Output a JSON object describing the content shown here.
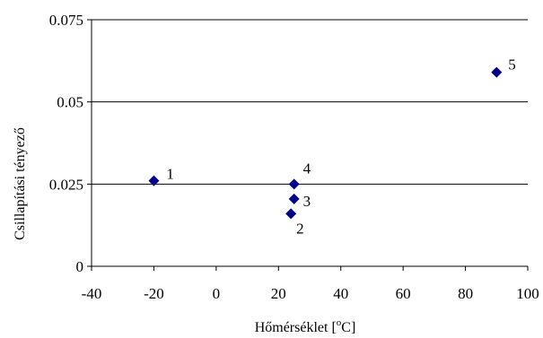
{
  "chart_data": {
    "type": "scatter",
    "xlabel": "Hőmérséklet [°C]",
    "xlabel_base": "Hőmérséklet [",
    "xlabel_sup": "o",
    "xlabel_tail": "C]",
    "ylabel": "Csillapítási tényező",
    "xlim": [
      -40,
      100
    ],
    "ylim": [
      0,
      0.075
    ],
    "x_ticks": [
      -40,
      -20,
      0,
      20,
      40,
      60,
      80,
      100
    ],
    "y_ticks": [
      0,
      0.025,
      0.05,
      0.075
    ],
    "x_tick_labels": [
      "-40",
      "-20",
      "0",
      "20",
      "40",
      "60",
      "80",
      "100"
    ],
    "y_tick_labels": [
      "0",
      "0.025",
      "0.05",
      "0.075"
    ],
    "horizontal_gridlines": true,
    "marker": "diamond",
    "marker_color": "#00008B",
    "points": [
      {
        "label": "1",
        "x": -20,
        "y": 0.026
      },
      {
        "label": "2",
        "x": 24,
        "y": 0.016
      },
      {
        "label": "3",
        "x": 25,
        "y": 0.0205
      },
      {
        "label": "4",
        "x": 25,
        "y": 0.025
      },
      {
        "label": "5",
        "x": 90,
        "y": 0.059
      }
    ]
  }
}
